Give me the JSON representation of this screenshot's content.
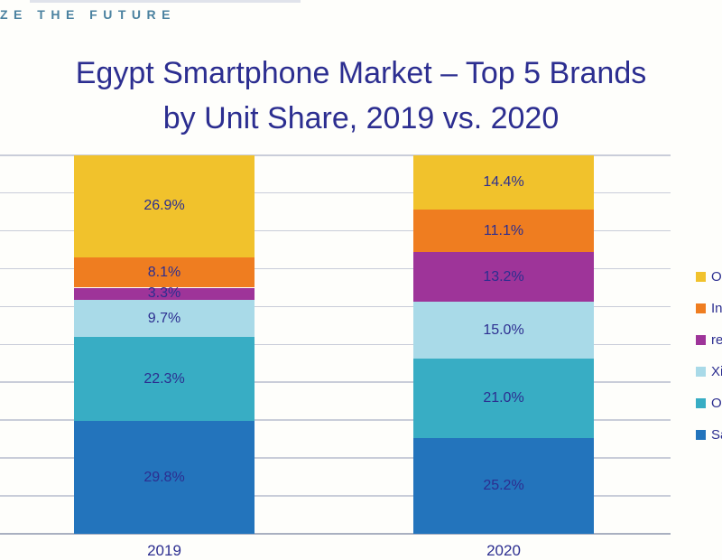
{
  "branding": {
    "tagline": "ZE THE FUTURE",
    "tagline_color": "#4B82A0"
  },
  "title": {
    "line1": "Egypt Smartphone Market – Top 5 Brands",
    "line2": "by Unit Share, 2019 vs. 2020",
    "color": "#2C2E90"
  },
  "chart_data": {
    "type": "bar",
    "stacked": true,
    "title": "Egypt Smartphone Market – Top 5 Brands by Unit Share, 2019 vs. 2020",
    "categories": [
      "2019",
      "2020"
    ],
    "series": [
      {
        "name": "Sa",
        "color": "#2374BC",
        "values": [
          29.8,
          25.2
        ]
      },
      {
        "name": "O",
        "color": "#38ADC4",
        "values": [
          22.3,
          21.0
        ]
      },
      {
        "name": "Xi",
        "color": "#A9DAE8",
        "values": [
          9.7,
          15.0
        ]
      },
      {
        "name": "re",
        "color": "#9E3499",
        "values": [
          3.3,
          13.2
        ]
      },
      {
        "name": "In",
        "color": "#EF7D20",
        "values": [
          8.1,
          11.1
        ]
      },
      {
        "name": "O",
        "color": "#F1C22C",
        "values": [
          26.9,
          14.4
        ]
      }
    ],
    "value_label_suffix": "%",
    "value_label_color": "#2C2E90",
    "xlabel": "",
    "ylabel": "",
    "ylim": [
      0,
      100
    ],
    "ytick_step": 10,
    "yticklabels_visible": false,
    "grid": true,
    "grid_color": "#C9CDD9",
    "axis_line_color": "#A9B0C0",
    "legend": {
      "position": "right",
      "entries": [
        {
          "label": "O",
          "color": "#F1C22C"
        },
        {
          "label": "In",
          "color": "#EF7D20"
        },
        {
          "label": "re",
          "color": "#9E3499"
        },
        {
          "label": "Xi",
          "color": "#A9DAE8"
        },
        {
          "label": "O",
          "color": "#38ADC4"
        },
        {
          "label": "Sa",
          "color": "#2374BC"
        }
      ]
    }
  }
}
